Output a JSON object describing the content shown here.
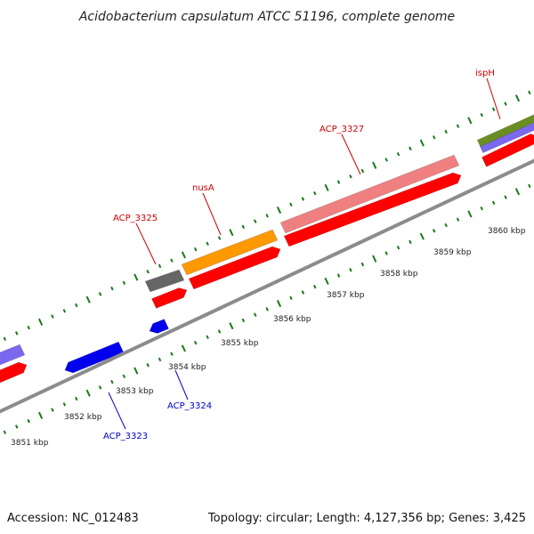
{
  "header": {
    "title": "Acidobacterium capsulatum ATCC 51196, complete genome"
  },
  "footer": {
    "accession": "Accession: NC_012483",
    "summary": "Topology: circular; Length: 4,127,356 bp; Genes: 3,425"
  },
  "scale": {
    "ticks": [
      {
        "label": "3851 kbp"
      },
      {
        "label": "3852 kbp"
      },
      {
        "label": "3853 kbp"
      },
      {
        "label": "3854 kbp"
      },
      {
        "label": "3855 kbp"
      },
      {
        "label": "3856 kbp"
      },
      {
        "label": "3857 kbp"
      },
      {
        "label": "3858 kbp"
      },
      {
        "label": "3859 kbp"
      },
      {
        "label": "3860 kbp"
      }
    ]
  },
  "gene_labels": [
    {
      "name": "ispH",
      "color": "#cc0000"
    },
    {
      "name": "ACP_3327",
      "color": "#cc0000"
    },
    {
      "name": "nusA",
      "color": "#cc0000"
    },
    {
      "name": "ACP_3325",
      "color": "#cc0000"
    },
    {
      "name": "ACP_3324",
      "color": "#0000cc"
    },
    {
      "name": "ACP_3323",
      "color": "#0000cc"
    }
  ],
  "colors": {
    "backbone": "#8c8c8c",
    "cds": "#ff0000",
    "gene_reverse": "#0000ee",
    "rrna_pink": "#f08080",
    "orange": "#ff9900",
    "grey": "#666666",
    "olive": "#6b8e23",
    "lavender": "#7b68ee",
    "tick": "#1a7a1a"
  }
}
